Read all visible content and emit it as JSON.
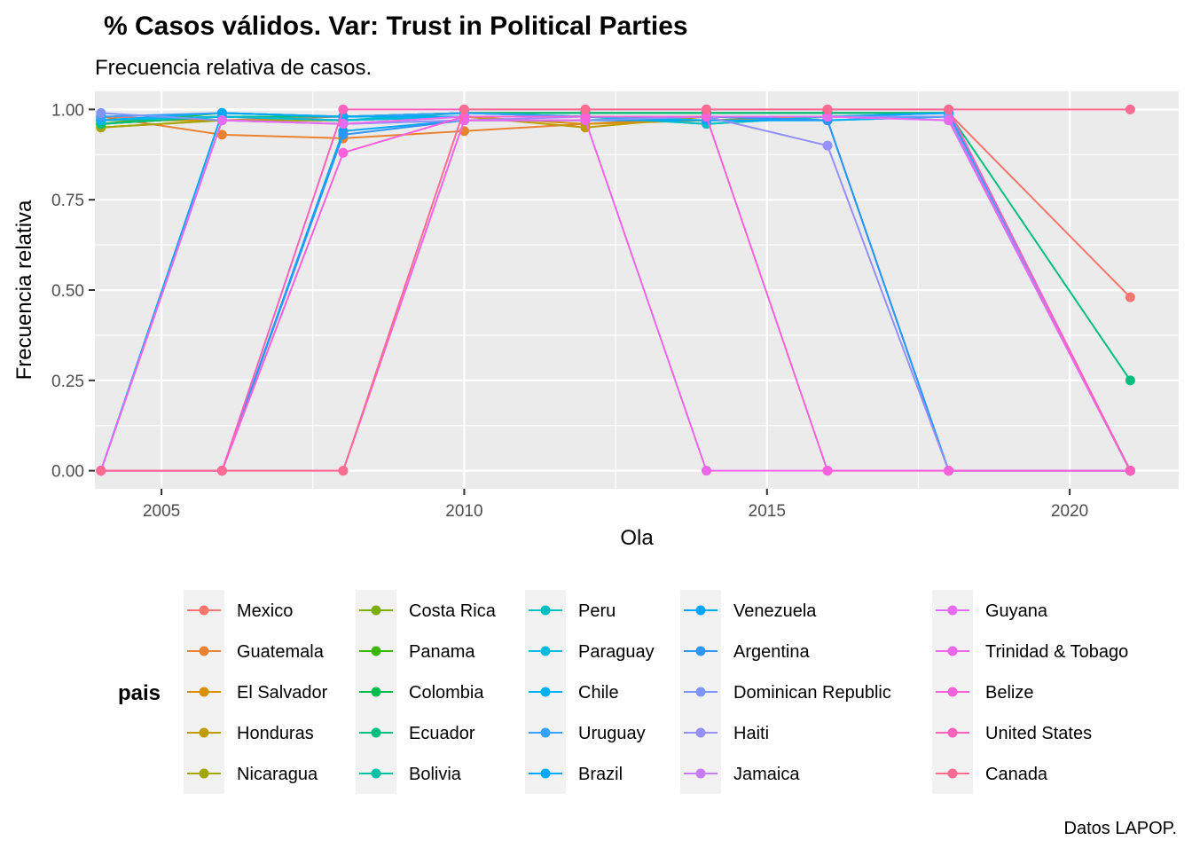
{
  "chart_data": {
    "type": "line",
    "title": "% Casos válidos. Var: Trust in Political Parties",
    "subtitle": "Frecuencia relativa de casos.",
    "xlabel": "Ola",
    "ylabel": "Frecuencia relativa",
    "caption": "Datos LAPOP.",
    "legend_title": "pais",
    "legend_position": "bottom",
    "xlim": [
      2003.9,
      2021.8
    ],
    "ylim": [
      -0.05,
      1.05
    ],
    "x_ticks": [
      2005,
      2010,
      2015,
      2020
    ],
    "x_tick_labels": [
      "2005",
      "2010",
      "2015",
      "2020"
    ],
    "y_ticks": [
      0,
      0.25,
      0.5,
      0.75,
      1.0
    ],
    "y_tick_labels": [
      "0.00",
      "0.25",
      "0.50",
      "0.75",
      "1.00"
    ],
    "grid": true,
    "x": [
      2004,
      2006,
      2008,
      2010,
      2012,
      2014,
      2016,
      2018,
      2021
    ],
    "series": [
      {
        "name": "Mexico",
        "color": "#F8766D",
        "values": [
          0.98,
          0.97,
          0.98,
          0.99,
          0.99,
          0.99,
          0.99,
          0.99,
          0.48
        ]
      },
      {
        "name": "Guatemala",
        "color": "#EA8331",
        "values": [
          0.98,
          0.93,
          0.92,
          0.94,
          0.96,
          0.98,
          0.98,
          0.98,
          0.0
        ]
      },
      {
        "name": "El Salvador",
        "color": "#D89000",
        "values": [
          0.97,
          0.97,
          0.97,
          0.98,
          0.96,
          0.97,
          0.98,
          0.98,
          0.0
        ]
      },
      {
        "name": "Honduras",
        "color": "#C09B00",
        "values": [
          0.95,
          0.97,
          0.97,
          0.98,
          0.95,
          0.98,
          0.98,
          0.98,
          0.0
        ]
      },
      {
        "name": "Nicaragua",
        "color": "#A3A500",
        "values": [
          0.95,
          0.97,
          0.97,
          0.98,
          0.98,
          0.98,
          0.98,
          0.98,
          0.0
        ]
      },
      {
        "name": "Costa Rica",
        "color": "#7CAE00",
        "values": [
          0.96,
          0.98,
          0.98,
          0.99,
          0.99,
          0.99,
          0.99,
          0.99,
          0.0
        ]
      },
      {
        "name": "Panama",
        "color": "#39B600",
        "values": [
          0.96,
          0.99,
          0.98,
          0.99,
          0.99,
          0.99,
          0.99,
          0.99,
          0.0
        ]
      },
      {
        "name": "Colombia",
        "color": "#00BB4E",
        "values": [
          0.96,
          0.98,
          0.98,
          0.99,
          0.99,
          0.99,
          0.99,
          0.99,
          0.0
        ]
      },
      {
        "name": "Ecuador",
        "color": "#00BF7D",
        "values": [
          0.96,
          0.98,
          0.98,
          0.99,
          0.99,
          0.99,
          0.99,
          0.99,
          0.25
        ]
      },
      {
        "name": "Bolivia",
        "color": "#00C1A3",
        "values": [
          0.97,
          0.98,
          0.97,
          0.99,
          0.98,
          0.96,
          0.98,
          0.98,
          0.0
        ]
      },
      {
        "name": "Peru",
        "color": "#00BFC4",
        "values": [
          0.97,
          0.98,
          0.97,
          0.98,
          0.98,
          0.96,
          0.98,
          0.98,
          0.0
        ]
      },
      {
        "name": "Paraguay",
        "color": "#00BAE0",
        "values": [
          0.97,
          0.98,
          0.97,
          0.98,
          0.98,
          0.97,
          0.97,
          0.98,
          0.0
        ]
      },
      {
        "name": "Chile",
        "color": "#00B0F6",
        "values": [
          0.97,
          0.99,
          0.98,
          0.99,
          0.98,
          0.98,
          0.97,
          0.98,
          0.0
        ]
      },
      {
        "name": "Uruguay",
        "color": "#35A2FF",
        "values": [
          0.98,
          0.99,
          0.98,
          0.99,
          0.98,
          0.98,
          0.98,
          0.99,
          0.0
        ]
      },
      {
        "name": "Brazil",
        "color": "#00A9FF",
        "values": [
          0.0,
          0.99,
          0.98,
          0.98,
          0.98,
          0.98,
          0.98,
          0.99,
          0.0
        ]
      },
      {
        "name": "Venezuela",
        "color": "#00A5FF",
        "values": [
          0.0,
          0.0,
          0.94,
          0.97,
          0.97,
          0.97,
          0.97,
          0.0,
          0.0
        ]
      },
      {
        "name": "Argentina",
        "color": "#2D96F8",
        "values": [
          0.0,
          0.0,
          0.93,
          0.97,
          0.97,
          0.98,
          0.97,
          0.0,
          0.0
        ]
      },
      {
        "name": "Dominican Republic",
        "color": "#7F96FF",
        "values": [
          0.99,
          0.97,
          0.96,
          0.97,
          0.97,
          0.98,
          0.98,
          0.98,
          0.0
        ]
      },
      {
        "name": "Haiti",
        "color": "#9590FF",
        "values": [
          0.0,
          0.97,
          0.96,
          0.97,
          0.98,
          0.98,
          0.9,
          0.0,
          0.0
        ]
      },
      {
        "name": "Jamaica",
        "color": "#C77CFF",
        "values": [
          0.0,
          0.97,
          0.96,
          0.98,
          0.98,
          0.98,
          0.98,
          0.97,
          0.0
        ]
      },
      {
        "name": "Guyana",
        "color": "#E76BF3",
        "values": [
          0.0,
          0.97,
          0.96,
          0.98,
          0.98,
          0.98,
          0.98,
          0.97,
          0.0
        ]
      },
      {
        "name": "Trinidad & Tobago",
        "color": "#F066EA",
        "values": [
          0.0,
          0.0,
          0.0,
          0.97,
          0.97,
          0.0,
          0.0,
          0.0,
          0.0
        ]
      },
      {
        "name": "Belize",
        "color": "#FA62DB",
        "values": [
          0.0,
          0.0,
          0.88,
          0.98,
          0.98,
          0.98,
          0.0,
          0.0,
          0.0
        ]
      },
      {
        "name": "United States",
        "color": "#FF62BC",
        "values": [
          0.0,
          0.0,
          1.0,
          1.0,
          1.0,
          1.0,
          1.0,
          1.0,
          0.0
        ]
      },
      {
        "name": "Canada",
        "color": "#FF6C91",
        "values": [
          0.0,
          0.0,
          0.0,
          1.0,
          1.0,
          1.0,
          1.0,
          1.0,
          1.0
        ]
      }
    ]
  }
}
